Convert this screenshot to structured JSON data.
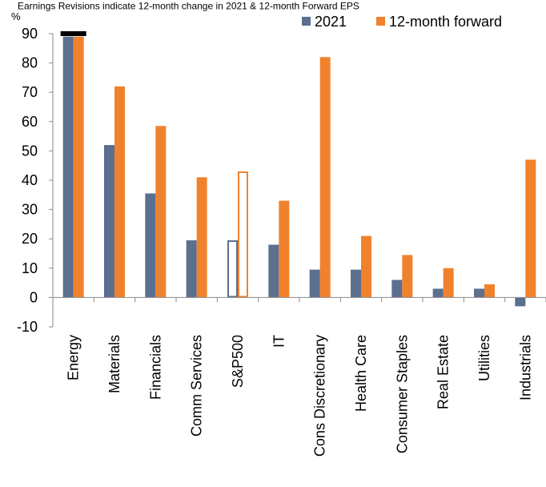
{
  "chart_data": {
    "type": "bar",
    "title": "Earnings Revisions indicate 12-month change in 2021 & 12-month Forward EPS",
    "ylabel": "%",
    "xlabel": "",
    "ylim": [
      -10,
      90
    ],
    "yticks": [
      -10,
      0,
      10,
      20,
      30,
      40,
      50,
      60,
      70,
      80,
      90
    ],
    "grid": false,
    "legend_position": "top-right",
    "categories": [
      "Energy",
      "Materials",
      "Financials",
      "Comm Services",
      "S&P500",
      "IT",
      "Cons Discretionary",
      "Health Care",
      "Consumer Staples",
      "Real Estate",
      "Utilities",
      "Industrials"
    ],
    "highlighted_category": "S&P500",
    "clipped_marker_category": "Energy",
    "series": [
      {
        "name": "2021",
        "color": "#5B6F8E",
        "values": [
          89,
          52,
          35.5,
          19.5,
          19.5,
          18,
          9.5,
          9.5,
          6,
          3,
          3,
          -3
        ]
      },
      {
        "name": "12-month forward",
        "color": "#F0822D",
        "values": [
          89,
          72,
          58.5,
          41,
          43,
          33,
          82,
          21,
          14.5,
          10,
          4.5,
          47
        ]
      }
    ]
  }
}
